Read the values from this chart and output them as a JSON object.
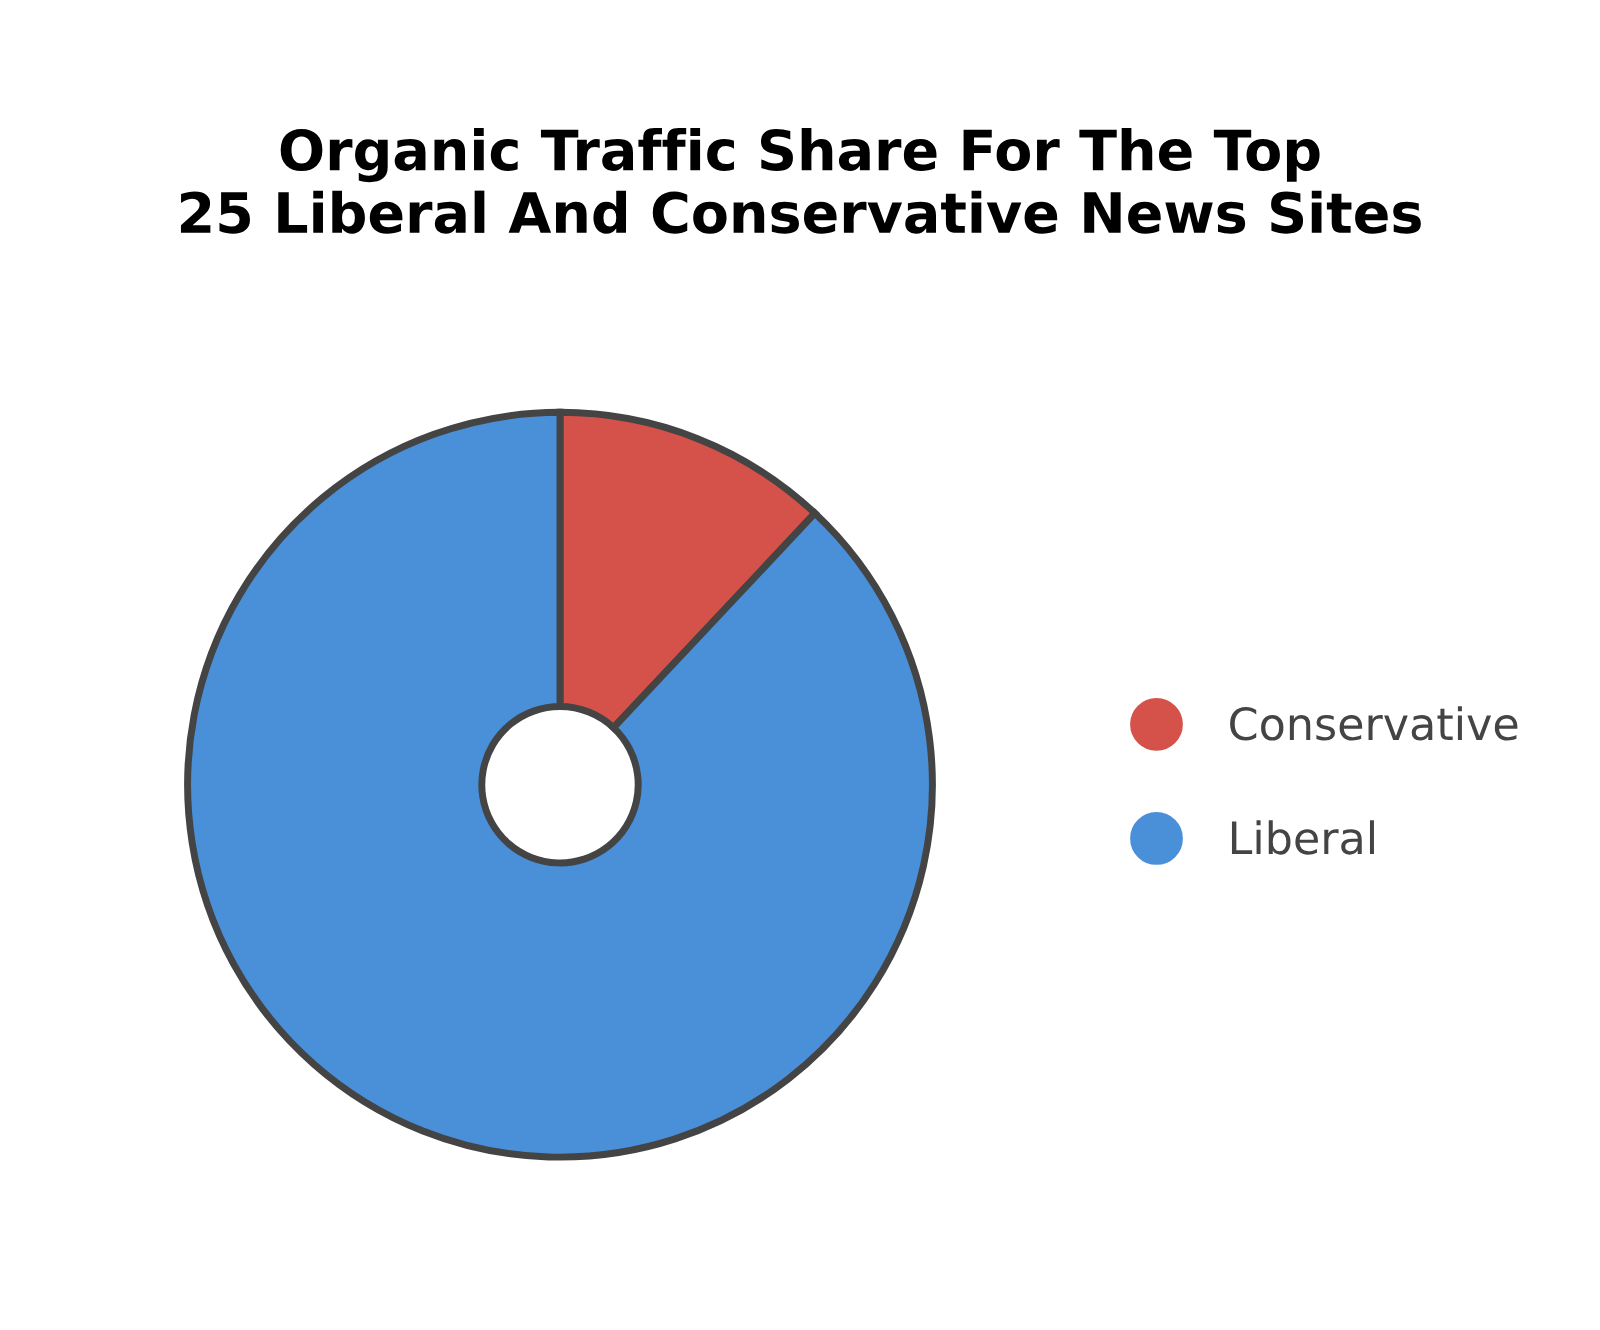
{
  "chart_data": {
    "type": "donut",
    "title": "Organic Traffic Share For The Top\n25 Liberal And Conservative News Sites",
    "categories": [
      "Conservative",
      "Liberal"
    ],
    "values": [
      12,
      88
    ],
    "colors": [
      "#d4524a",
      "#4a90d9"
    ],
    "legend": "right"
  }
}
